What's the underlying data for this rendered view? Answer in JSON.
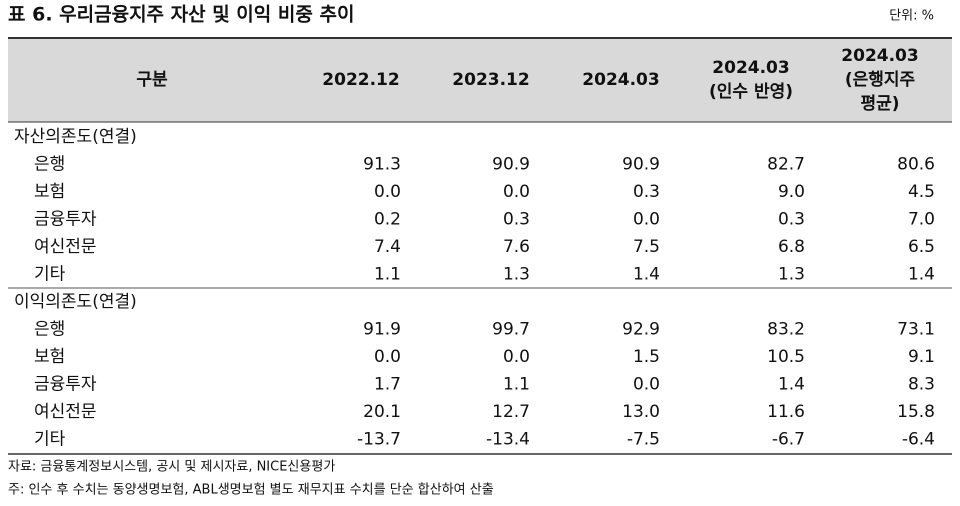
{
  "header": {
    "title": "표 6. 우리금융지주 자산 및 이익 비중 추이",
    "unit": "단위: %"
  },
  "table": {
    "columns": [
      [
        "구분"
      ],
      [
        "2022.12"
      ],
      [
        "2023.12"
      ],
      [
        "2024.03"
      ],
      [
        "2024.03",
        "(인수 반영)"
      ],
      [
        "2024.03",
        "(은행지주",
        "평균)"
      ]
    ],
    "sections": [
      {
        "title": "자산의존도(연결)",
        "rows": [
          [
            "은행",
            "91.3",
            "90.9",
            "90.9",
            "82.7",
            "80.6"
          ],
          [
            "보험",
            "0.0",
            "0.0",
            "0.3",
            "9.0",
            "4.5"
          ],
          [
            "금융투자",
            "0.2",
            "0.3",
            "0.0",
            "0.3",
            "7.0"
          ],
          [
            "여신전문",
            "7.4",
            "7.6",
            "7.5",
            "6.8",
            "6.5"
          ],
          [
            "기타",
            "1.1",
            "1.3",
            "1.4",
            "1.3",
            "1.4"
          ]
        ]
      },
      {
        "title": "이익의존도(연결)",
        "rows": [
          [
            "은행",
            "91.9",
            "99.7",
            "92.9",
            "83.2",
            "73.1"
          ],
          [
            "보험",
            "0.0",
            "0.0",
            "1.5",
            "10.5",
            "9.1"
          ],
          [
            "금융투자",
            "1.7",
            "1.1",
            "0.0",
            "1.4",
            "8.3"
          ],
          [
            "여신전문",
            "20.1",
            "12.7",
            "13.0",
            "11.6",
            "15.8"
          ],
          [
            "기타",
            "-13.7",
            "-13.4",
            "-7.5",
            "-6.7",
            "-6.4"
          ]
        ]
      }
    ]
  },
  "footer": {
    "source": "자료: 금융통계정보시스템, 공시 및 제시자료, NICE신용평가",
    "note": "주: 인수 후 수치는 동양생명보험, ABL생명보험 별도 재무지표 수치를 단순 합산하여 산출"
  }
}
